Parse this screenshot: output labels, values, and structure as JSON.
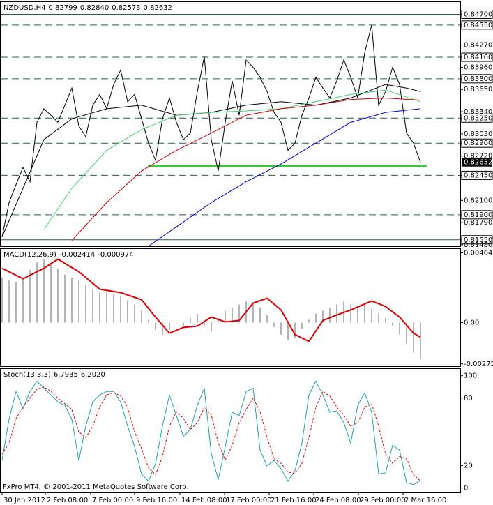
{
  "chart_data": [
    {
      "type": "line",
      "title": "NZDUSD,H4",
      "quote": [
        0.82799,
        {
          "value": 0.8284,
          "label": "0.82840"
        },
        0.82573,
        0.82632
      ],
      "x": [
        0,
        1,
        2,
        3,
        4,
        5,
        6,
        7,
        8,
        9,
        10,
        11,
        12,
        13,
        14,
        15,
        16,
        17,
        18,
        19,
        20,
        21,
        22,
        23,
        24,
        25,
        26,
        27,
        28,
        29,
        30,
        31,
        32,
        33,
        34,
        35,
        36,
        37,
        38,
        39,
        40,
        41,
        42,
        43,
        44,
        45,
        46,
        47,
        48,
        49,
        50,
        51,
        52,
        53,
        54,
        55,
        56,
        57,
        58,
        59,
        60
      ],
      "xlim": [
        -0.3,
        65.7
      ],
      "ylim": [
        0.8146,
        0.8487
      ],
      "yticks": [
        {
          "value": 0.847,
          "label": "0.84700"
        },
        {
          "value": 0.8455,
          "label": "0.84550"
        },
        {
          "value": 0.8427,
          "label": "0.84270"
        },
        {
          "value": 0.841,
          "label": "0.84100"
        },
        {
          "value": 0.8396,
          "label": "0.83960"
        },
        {
          "value": 0.838,
          "label": "0.83800"
        },
        {
          "value": 0.8365,
          "label": "0.83650"
        },
        {
          "value": 0.8334,
          "label": "0.83340"
        },
        {
          "value": 0.8325,
          "label": "0.83250"
        },
        {
          "value": 0.8303,
          "label": "0.83030"
        },
        {
          "value": 0.829,
          "label": "0.82900"
        },
        {
          "value": 0.8272,
          "label": "0.82720"
        },
        {
          "value": 0.8245,
          "label": "0.82450"
        },
        {
          "value": 0.821,
          "label": "0.82100"
        },
        {
          "value": 0.819,
          "label": "0.81900"
        },
        {
          "value": 0.8179,
          "label": "0.81790"
        },
        {
          "value": 0.8155,
          "label": "0.81550"
        },
        {
          "value": 0.8148,
          "label": "0.81480"
        }
      ],
      "levels": [
        {
          "value": 0.847,
          "dash": false
        },
        {
          "value": 0.8455,
          "dash": true
        },
        {
          "value": 0.841,
          "dash": true
        },
        {
          "value": 0.838,
          "dash": true
        },
        {
          "value": 0.8325,
          "dash": true
        },
        {
          "value": 0.829,
          "dash": true
        },
        {
          "value": 0.8245,
          "dash": true
        },
        {
          "value": 0.819,
          "dash": true
        },
        {
          "value": 0.8155,
          "dash": false
        }
      ],
      "level_color": "#2a5a5a",
      "support": {
        "value": 0.8258,
        "x": [
          20.9,
          60.9
        ],
        "color": "#33cc33"
      },
      "series": [
        {
          "color": "#000000",
          "values": [
            0.8159,
            0.8207,
            0.8232,
            0.8256,
            0.8236,
            0.8319,
            0.8338,
            0.8329,
            0.8319,
            0.8343,
            0.8367,
            0.8314,
            0.8299,
            0.8343,
            0.8358,
            0.8338,
            0.8372,
            0.8392,
            0.8348,
            0.8358,
            0.8324,
            0.829,
            0.8266,
            0.8324,
            0.8353,
            0.8319,
            0.8295,
            0.8304,
            0.8362,
            0.8411,
            0.8295,
            0.8251,
            0.8319,
            0.8377,
            0.8329,
            0.8406,
            0.8396,
            0.8382,
            0.8362,
            0.8333,
            0.8319,
            0.828,
            0.829,
            0.8329,
            0.8353,
            0.8382,
            0.8367,
            0.8353,
            0.8377,
            0.8406,
            0.8382,
            0.8353,
            0.8416,
            0.8455,
            0.8343,
            0.8362,
            0.8396,
            0.8372,
            0.8304,
            0.829,
            0.8263
          ]
        },
        {
          "color": "#000000",
          "x": [
            0,
            3,
            6,
            10,
            15,
            20,
            25,
            30,
            35,
            40,
            45,
            50,
            55,
            58,
            60
          ],
          "values": [
            0.8159,
            0.8227,
            0.8295,
            0.8324,
            0.8338,
            0.8343,
            0.8329,
            0.8333,
            0.8343,
            0.8348,
            0.8343,
            0.8353,
            0.8372,
            0.8367,
            0.8362
          ]
        },
        {
          "color": "#3cd070",
          "x": [
            6,
            10,
            15,
            20,
            25,
            30,
            35,
            40,
            45,
            50,
            55,
            60
          ],
          "values": [
            0.8169,
            0.8227,
            0.828,
            0.8309,
            0.8329,
            0.8333,
            0.8335,
            0.8338,
            0.8348,
            0.8358,
            0.8364,
            0.8348
          ]
        },
        {
          "color": "#cc0000",
          "x": [
            10,
            15,
            20,
            25,
            30,
            35,
            40,
            45,
            50,
            55,
            60
          ],
          "values": [
            0.8154,
            0.8207,
            0.8251,
            0.828,
            0.8304,
            0.8329,
            0.8338,
            0.8343,
            0.8351,
            0.8353,
            0.835
          ]
        },
        {
          "color": "#0000cc",
          "x": [
            21,
            30,
            35,
            40,
            45,
            50,
            55,
            60
          ],
          "values": [
            0.8146,
            0.8207,
            0.8236,
            0.8261,
            0.829,
            0.8319,
            0.8333,
            0.8338
          ]
        }
      ]
    },
    {
      "type": "bar",
      "title": "MACD(12,26,9)",
      "readout": [
        -0.002414,
        -0.000974
      ],
      "x": [
        0,
        1,
        2,
        3,
        4,
        5,
        6,
        7,
        8,
        9,
        10,
        11,
        12,
        13,
        14,
        15,
        16,
        17,
        18,
        19,
        20,
        21,
        22,
        23,
        24,
        25,
        26,
        27,
        28,
        29,
        30,
        31,
        32,
        33,
        34,
        35,
        36,
        37,
        38,
        39,
        40,
        41,
        42,
        43,
        44,
        45,
        46,
        47,
        48,
        49,
        50,
        51,
        52,
        53,
        54,
        55,
        56,
        57,
        58,
        59,
        60
      ],
      "xlim": [
        -0.3,
        65.7
      ],
      "ylim": [
        -0.0029,
        0.0049
      ],
      "yticks": [
        {
          "value": 0.00464,
          "label": "0.004640"
        },
        {
          "value": 0,
          "label": "0.00"
        },
        {
          "value": -0.00275,
          "label": "-0.002750"
        }
      ],
      "color": "#b4b4b4",
      "values": [
        0.003,
        0.0028,
        0.0027,
        0.003,
        0.0035,
        0.004,
        0.0042,
        0.004,
        0.0036,
        0.0032,
        0.003,
        0.0028,
        0.0025,
        0.0022,
        0.002,
        0.002,
        0.0019,
        0.0018,
        0.0015,
        0.0012,
        0.0008,
        0.0002,
        -0.0005,
        -0.0008,
        -0.0005,
        0,
        -0.0002,
        0.0003,
        0.0006,
        -0.0002,
        -0.0006,
        0.0003,
        0.0008,
        0.001,
        0.0012,
        0.0014,
        0.0013,
        0.001,
        0.0005,
        -0.0003,
        -0.0008,
        -0.0012,
        -0.001,
        -0.0004,
        0.0002,
        0.0006,
        0.0008,
        0.001,
        0.0012,
        0.0014,
        0.0012,
        0.001,
        0.0012,
        0.0009,
        0.0006,
        0.0003,
        -0.0002,
        -0.0008,
        -0.0014,
        -0.002,
        -0.002414
      ],
      "series": [
        {
          "color": "#dd0000",
          "width": 2,
          "x": [
            0,
            3,
            6,
            8,
            11,
            14,
            17,
            20,
            22,
            24,
            26,
            28,
            30,
            32,
            34,
            36,
            38,
            40,
            42,
            44,
            46,
            48,
            50,
            53,
            55,
            57,
            59,
            60
          ],
          "values": [
            0.00362,
            0.00292,
            0.00362,
            0.00422,
            0.00339,
            0.00223,
            0.002,
            0.00153,
            0.00037,
            -0.0007,
            -0.00032,
            -0.00023,
            0.00037,
            5e-05,
            0.00014,
            0.0013,
            0.00162,
            0.00084,
            -0.00079,
            -0.00125,
            0.00014,
            0.00051,
            0.00084,
            0.00144,
            0.00107,
            0.00037,
            -0.0007,
            -0.000974
          ]
        }
      ]
    },
    {
      "type": "line",
      "title": "Stoch(13,3,3)",
      "readout": [
        6.7935,
        {
          "value": 6.202,
          "label": "6.2020"
        }
      ],
      "x": [
        0,
        1,
        2,
        3,
        4,
        5,
        6,
        7,
        8,
        9,
        10,
        11,
        12,
        13,
        14,
        15,
        16,
        17,
        18,
        19,
        20,
        21,
        22,
        23,
        24,
        25,
        26,
        27,
        28,
        29,
        30,
        31,
        32,
        33,
        34,
        35,
        36,
        37,
        38,
        39,
        40,
        41,
        42,
        43,
        44,
        45,
        46,
        47,
        48,
        49,
        50,
        51,
        52,
        53,
        54,
        55,
        56,
        57,
        58,
        59,
        60
      ],
      "xlim": [
        -0.3,
        65.7
      ],
      "ylim": [
        -4,
        106
      ],
      "yticks": [
        100,
        80,
        20,
        0
      ],
      "xticks": [
        {
          "value": 0,
          "label": "30 Jan 2012"
        },
        {
          "value": 6.2,
          "label": "2 Feb 08:00"
        },
        {
          "value": 12.7,
          "label": "7 Feb 00:00"
        },
        {
          "value": 19,
          "label": "9 Feb 16:00"
        },
        {
          "value": 25.5,
          "label": "14 Feb 08:00"
        },
        {
          "value": 31.9,
          "label": "17 Feb 00:00"
        },
        {
          "value": 38.3,
          "label": "21 Feb 16:00"
        },
        {
          "value": 44.7,
          "label": "24 Feb 08:00"
        },
        {
          "value": 51.1,
          "label": "29 Feb 00:00"
        },
        {
          "value": 57.5,
          "label": "2 Mar 16:00"
        }
      ],
      "note": "FxPro MT4, © 2001-2011 MetaQuotes Software Corp.",
      "series": [
        {
          "color": "#1fa5a5",
          "values": [
            24.5,
            61.3,
            85.9,
            70.6,
            85.9,
            95.1,
            89,
            82.8,
            76.7,
            73.6,
            61.3,
            24.5,
            55.2,
            76.7,
            82.8,
            85.9,
            85.9,
            76.7,
            55.2,
            36.8,
            12.3,
            6.1,
            21.5,
            55.2,
            82.8,
            64.4,
            46,
            52.1,
            73.6,
            89,
            30.7,
            7.4,
            36.8,
            67.5,
            64.4,
            85.9,
            89,
            33.7,
            19.6,
            24.5,
            17.2,
            6.1,
            15.3,
            39.9,
            82.8,
            95.1,
            82.8,
            67.5,
            68.7,
            58.3,
            39.9,
            73.6,
            84.7,
            67.5,
            12.3,
            13.5,
            38,
            33.7,
            4.9,
            3,
            6.7935
          ]
        },
        {
          "color": "#dd0000",
          "dash": true,
          "values": [
            30,
            40,
            62,
            72,
            80,
            88,
            90,
            86,
            80,
            75,
            70,
            50,
            45,
            55,
            72,
            83,
            85,
            82,
            72,
            50,
            35,
            18,
            12,
            28,
            55,
            68,
            62,
            52,
            58,
            72,
            65,
            40,
            25,
            38,
            58,
            70,
            80,
            68,
            45,
            26,
            22,
            14,
            13,
            22,
            45,
            72,
            86,
            82,
            72,
            65,
            55,
            58,
            72,
            75,
            55,
            30,
            22,
            28,
            26,
            12,
            6.202
          ]
        }
      ]
    }
  ]
}
